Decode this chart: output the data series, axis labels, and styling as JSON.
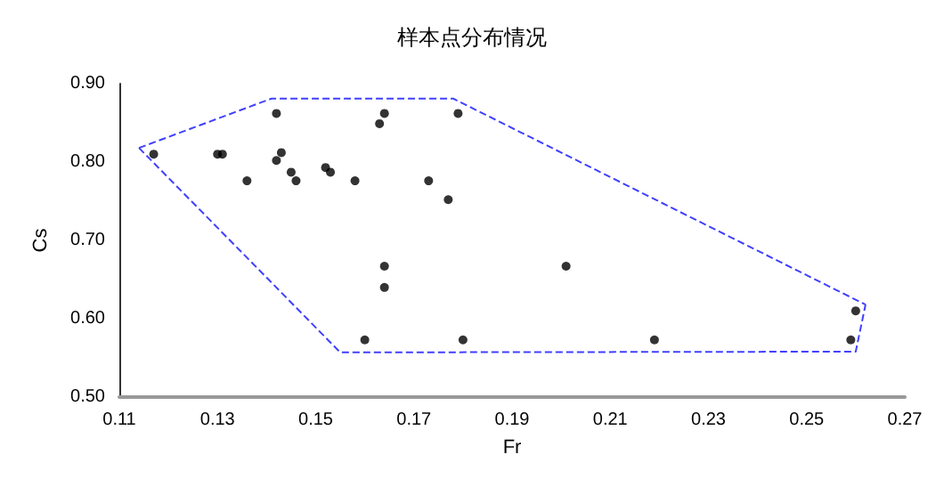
{
  "chart_data": {
    "type": "scatter",
    "title": "样本点分布情况",
    "xlabel": "Fr",
    "ylabel": "Cs",
    "xlim": [
      0.11,
      0.27
    ],
    "xticks": [
      0.11,
      0.13,
      0.15,
      0.17,
      0.19,
      0.21,
      0.23,
      0.25,
      0.27
    ],
    "ylim": [
      0.5,
      0.9
    ],
    "yticks": [
      {
        "value": 0.5,
        "label": "0.50"
      },
      {
        "value": 0.6,
        "label": "0.60"
      },
      {
        "value": 0.7,
        "label": "0.70"
      },
      {
        "value": 0.8,
        "label": "0.80"
      },
      {
        "value": 0.9,
        "label": "0.90"
      }
    ],
    "grid": false,
    "marker": "circle",
    "series": [
      {
        "color": "#000000",
        "x": [
          0.117,
          0.13,
          0.131,
          0.136,
          0.142,
          0.143,
          0.142,
          0.145,
          0.146,
          0.152,
          0.153,
          0.158,
          0.164,
          0.163,
          0.164,
          0.164,
          0.16,
          0.173,
          0.177,
          0.179,
          0.18,
          0.201,
          0.219,
          0.26,
          0.259
        ],
        "values": [
          0.81,
          0.81,
          0.81,
          0.776,
          0.862,
          0.812,
          0.802,
          0.787,
          0.776,
          0.793,
          0.787,
          0.776,
          0.862,
          0.849,
          0.667,
          0.64,
          0.573,
          0.776,
          0.752,
          0.862,
          0.573,
          0.667,
          0.573,
          0.61,
          0.573
        ]
      },
      {
        "type": "line",
        "color": "#4040ff",
        "line_style": "dashed",
        "marker": "none",
        "x": [
          0.114,
          0.141,
          0.178,
          0.262
        ],
        "values": [
          0.818,
          0.881,
          0.881,
          0.618
        ]
      },
      {
        "type": "line",
        "color": "#4040ff",
        "line_style": "dashed",
        "marker": "none",
        "x": [
          0.114,
          0.155,
          0.26,
          0.262
        ],
        "values": [
          0.818,
          0.557,
          0.558,
          0.618
        ]
      }
    ]
  }
}
